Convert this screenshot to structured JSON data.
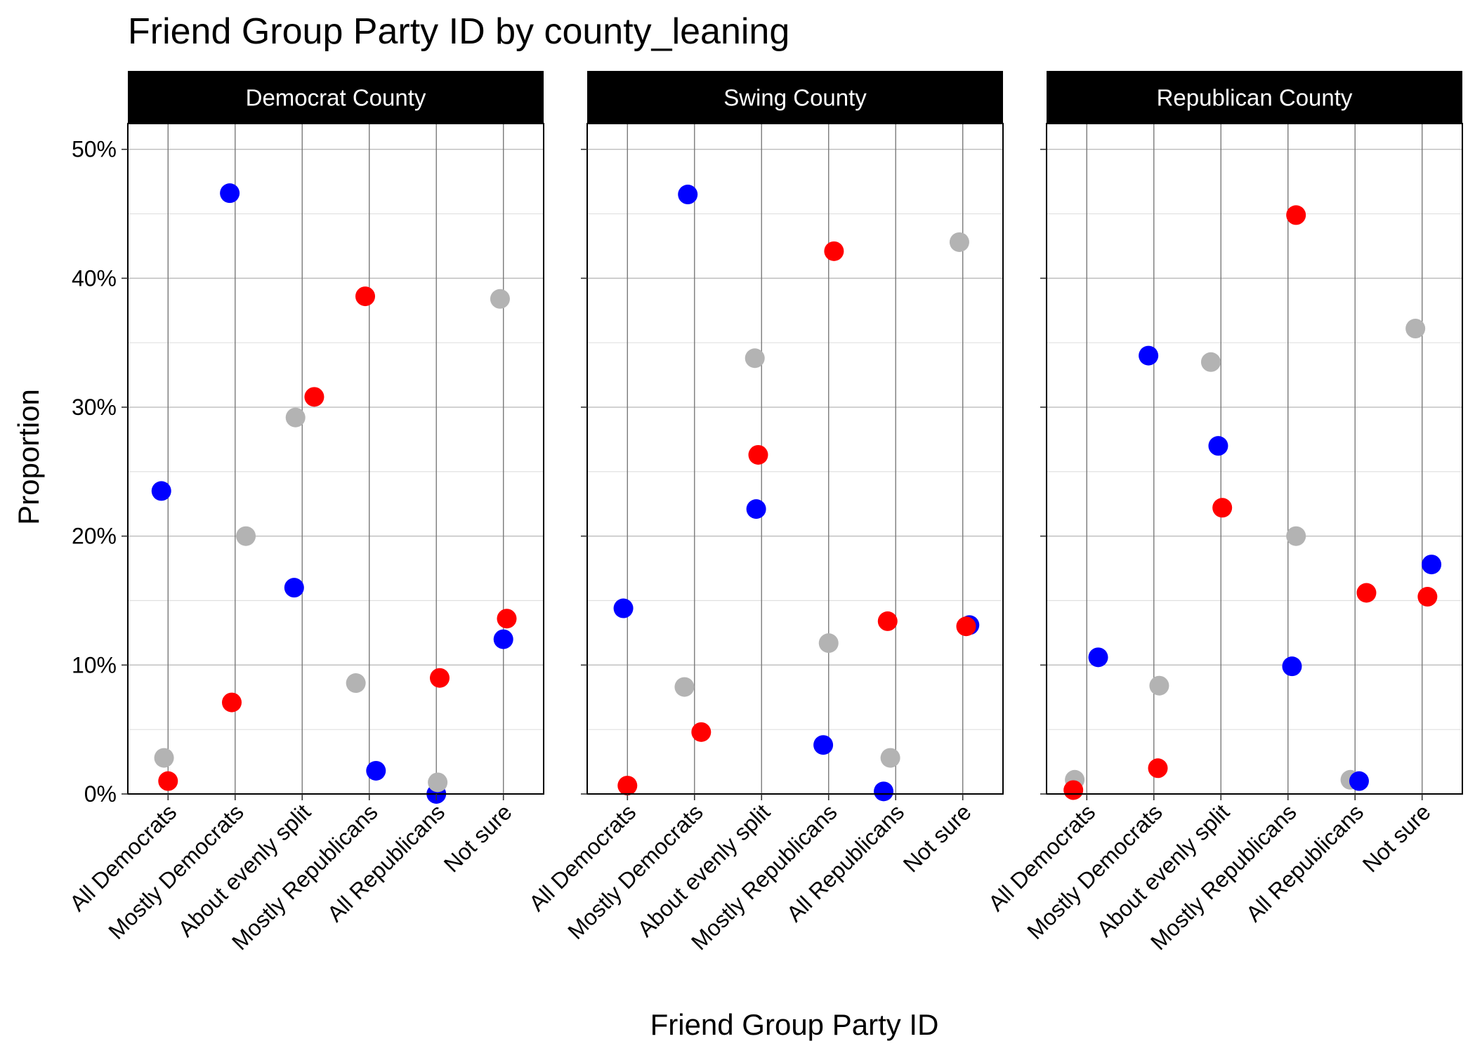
{
  "chart_data": {
    "type": "scatter",
    "title": "Friend Group Party ID by county_leaning",
    "xlabel": "Friend Group Party ID",
    "ylabel": "Proportion",
    "ylim": [
      0,
      0.52
    ],
    "y_ticks": [
      0,
      0.1,
      0.2,
      0.3,
      0.4,
      0.5
    ],
    "y_tick_labels": [
      "0%",
      "10%",
      "20%",
      "30%",
      "40%",
      "50%"
    ],
    "categories": [
      "All Democrats",
      "Mostly Democrats",
      "About evenly split",
      "Mostly Republicans",
      "All Republicans",
      "Not sure"
    ],
    "grid": true,
    "legend": "none",
    "series_colors": {
      "blue": "#0000ff",
      "red": "#ff0000",
      "gray": "#b3b3b3"
    },
    "panels": [
      {
        "label": "Democrat County",
        "points": [
          {
            "cat": 0,
            "dx": -0.1,
            "y": 0.235,
            "color": "blue"
          },
          {
            "cat": 0,
            "dx": -0.06,
            "y": 0.028,
            "color": "gray"
          },
          {
            "cat": 0,
            "dx": 0.0,
            "y": 0.01,
            "color": "red"
          },
          {
            "cat": 1,
            "dx": -0.08,
            "y": 0.466,
            "color": "blue"
          },
          {
            "cat": 1,
            "dx": 0.16,
            "y": 0.2,
            "color": "gray"
          },
          {
            "cat": 1,
            "dx": -0.05,
            "y": 0.071,
            "color": "red"
          },
          {
            "cat": 2,
            "dx": 0.18,
            "y": 0.308,
            "color": "red"
          },
          {
            "cat": 2,
            "dx": -0.1,
            "y": 0.292,
            "color": "gray"
          },
          {
            "cat": 2,
            "dx": -0.12,
            "y": 0.16,
            "color": "blue"
          },
          {
            "cat": 3,
            "dx": -0.06,
            "y": 0.386,
            "color": "red"
          },
          {
            "cat": 3,
            "dx": -0.2,
            "y": 0.086,
            "color": "gray"
          },
          {
            "cat": 3,
            "dx": 0.1,
            "y": 0.018,
            "color": "blue"
          },
          {
            "cat": 4,
            "dx": 0.05,
            "y": 0.09,
            "color": "red"
          },
          {
            "cat": 4,
            "dx": 0.0,
            "y": 0.0,
            "color": "blue"
          },
          {
            "cat": 4,
            "dx": 0.02,
            "y": 0.009,
            "color": "gray"
          },
          {
            "cat": 5,
            "dx": -0.05,
            "y": 0.384,
            "color": "gray"
          },
          {
            "cat": 5,
            "dx": 0.05,
            "y": 0.136,
            "color": "red"
          },
          {
            "cat": 5,
            "dx": 0.0,
            "y": 0.12,
            "color": "blue"
          }
        ]
      },
      {
        "label": "Swing County",
        "points": [
          {
            "cat": 0,
            "dx": -0.06,
            "y": 0.144,
            "color": "blue"
          },
          {
            "cat": 0,
            "dx": 0.0,
            "y": 0.0065,
            "color": "red"
          },
          {
            "cat": 1,
            "dx": -0.1,
            "y": 0.465,
            "color": "blue"
          },
          {
            "cat": 1,
            "dx": -0.15,
            "y": 0.083,
            "color": "gray"
          },
          {
            "cat": 1,
            "dx": 0.1,
            "y": 0.048,
            "color": "red"
          },
          {
            "cat": 2,
            "dx": -0.1,
            "y": 0.338,
            "color": "gray"
          },
          {
            "cat": 2,
            "dx": -0.05,
            "y": 0.263,
            "color": "red"
          },
          {
            "cat": 2,
            "dx": -0.08,
            "y": 0.221,
            "color": "blue"
          },
          {
            "cat": 3,
            "dx": 0.08,
            "y": 0.421,
            "color": "red"
          },
          {
            "cat": 3,
            "dx": 0.0,
            "y": 0.117,
            "color": "gray"
          },
          {
            "cat": 3,
            "dx": -0.08,
            "y": 0.038,
            "color": "blue"
          },
          {
            "cat": 4,
            "dx": -0.12,
            "y": 0.134,
            "color": "red"
          },
          {
            "cat": 4,
            "dx": -0.08,
            "y": 0.028,
            "color": "gray"
          },
          {
            "cat": 4,
            "dx": -0.18,
            "y": 0.002,
            "color": "blue"
          },
          {
            "cat": 5,
            "dx": -0.05,
            "y": 0.428,
            "color": "gray"
          },
          {
            "cat": 5,
            "dx": 0.1,
            "y": 0.131,
            "color": "blue"
          },
          {
            "cat": 5,
            "dx": 0.05,
            "y": 0.13,
            "color": "red"
          }
        ]
      },
      {
        "label": "Republican County",
        "points": [
          {
            "cat": 0,
            "dx": -0.18,
            "y": 0.011,
            "color": "gray"
          },
          {
            "cat": 0,
            "dx": -0.2,
            "y": 0.003,
            "color": "red"
          },
          {
            "cat": 0,
            "dx": 0.17,
            "y": 0.106,
            "color": "blue"
          },
          {
            "cat": 1,
            "dx": -0.08,
            "y": 0.34,
            "color": "blue"
          },
          {
            "cat": 1,
            "dx": 0.08,
            "y": 0.084,
            "color": "gray"
          },
          {
            "cat": 1,
            "dx": 0.06,
            "y": 0.02,
            "color": "red"
          },
          {
            "cat": 2,
            "dx": -0.15,
            "y": 0.335,
            "color": "gray"
          },
          {
            "cat": 2,
            "dx": -0.04,
            "y": 0.27,
            "color": "blue"
          },
          {
            "cat": 2,
            "dx": 0.02,
            "y": 0.222,
            "color": "red"
          },
          {
            "cat": 3,
            "dx": 0.12,
            "y": 0.449,
            "color": "red"
          },
          {
            "cat": 3,
            "dx": 0.12,
            "y": 0.2,
            "color": "gray"
          },
          {
            "cat": 3,
            "dx": 0.06,
            "y": 0.099,
            "color": "blue"
          },
          {
            "cat": 4,
            "dx": 0.17,
            "y": 0.156,
            "color": "red"
          },
          {
            "cat": 4,
            "dx": -0.07,
            "y": 0.011,
            "color": "gray"
          },
          {
            "cat": 4,
            "dx": 0.06,
            "y": 0.01,
            "color": "blue"
          },
          {
            "cat": 5,
            "dx": -0.1,
            "y": 0.361,
            "color": "gray"
          },
          {
            "cat": 5,
            "dx": 0.14,
            "y": 0.178,
            "color": "blue"
          },
          {
            "cat": 5,
            "dx": 0.08,
            "y": 0.153,
            "color": "red"
          }
        ]
      }
    ]
  }
}
